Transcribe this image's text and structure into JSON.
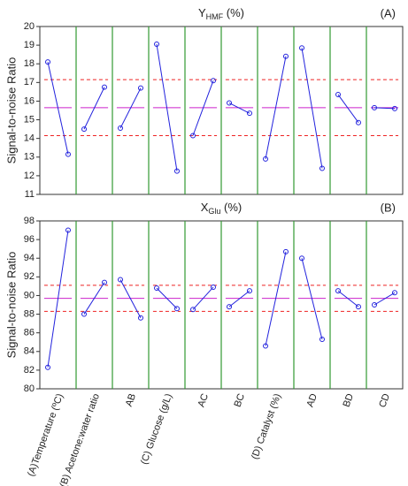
{
  "chart_data": [
    {
      "type": "main-effects",
      "title": "Y",
      "title_subscript": "HMF",
      "title_suffix": " (%)",
      "panel_label": "(A)",
      "ylabel": "Signal-to-noise Ratio",
      "ylim": [
        11,
        20
      ],
      "yticks": [
        11,
        12,
        13,
        14,
        15,
        16,
        17,
        18,
        19,
        20
      ],
      "mean": 15.65,
      "limits": [
        14.15,
        17.15
      ],
      "color": "#2222dd",
      "mean_color": "#cc22cc",
      "limit_color": "#ee2222",
      "separator_color": "#339933",
      "values": [
        [
          18.1,
          13.15
        ],
        [
          14.5,
          16.75
        ],
        [
          14.55,
          16.7
        ],
        [
          19.05,
          12.25
        ],
        [
          14.15,
          17.1
        ],
        [
          15.9,
          15.35
        ],
        [
          12.9,
          18.4
        ],
        [
          18.85,
          12.4
        ],
        [
          16.35,
          14.85
        ],
        [
          15.65,
          15.6
        ]
      ]
    },
    {
      "type": "main-effects",
      "title": "X",
      "title_subscript": "Glu",
      "title_suffix": " (%)",
      "panel_label": "(B)",
      "ylabel": "Signal-to-noise Ratio",
      "ylim": [
        80,
        98
      ],
      "yticks": [
        80,
        82,
        84,
        86,
        88,
        90,
        92,
        94,
        96,
        98
      ],
      "mean": 89.7,
      "limits": [
        88.3,
        91.1
      ],
      "color": "#2222dd",
      "mean_color": "#cc22cc",
      "limit_color": "#ee2222",
      "separator_color": "#339933",
      "categories": [
        "(A)Temperature (ºC)",
        "(B) Acetone:water ratio",
        "AB",
        "(C) Glucose (g/L)",
        "AC",
        "BC",
        "(D) Catalyst (%)",
        "AD",
        "BD",
        "CD"
      ],
      "values": [
        [
          82.3,
          97.0
        ],
        [
          88.0,
          91.4
        ],
        [
          91.7,
          87.6
        ],
        [
          90.8,
          88.6
        ],
        [
          88.5,
          90.9
        ],
        [
          88.8,
          90.5
        ],
        [
          84.6,
          94.7
        ],
        [
          94.0,
          85.3
        ],
        [
          90.5,
          88.8
        ],
        [
          89.0,
          90.3
        ]
      ]
    }
  ]
}
